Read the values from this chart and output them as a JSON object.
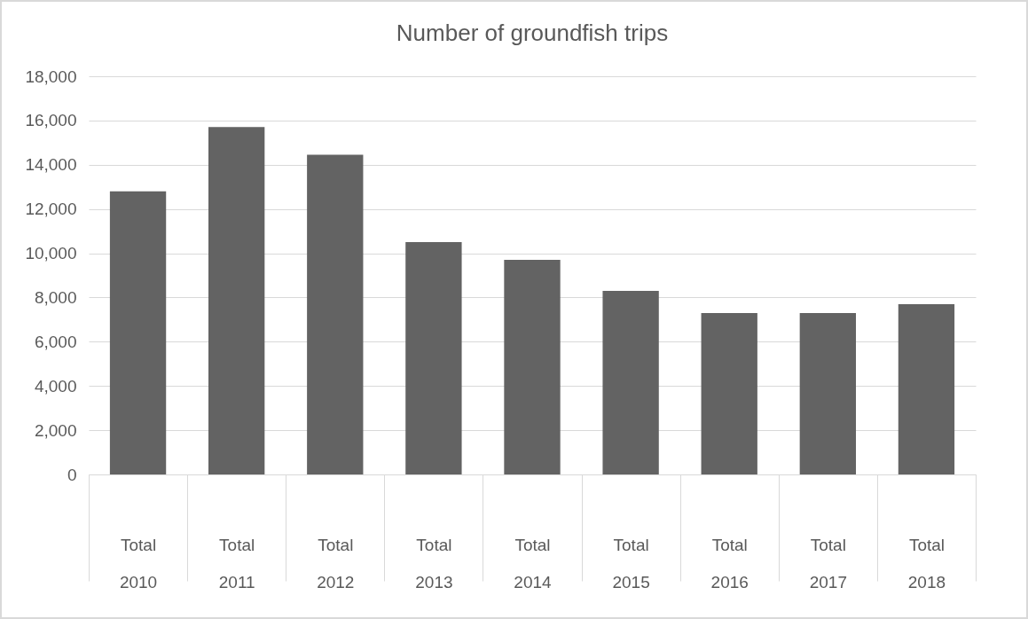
{
  "chart_data": {
    "type": "bar",
    "title": "Number of groundfish trips",
    "categories": [
      "Total 2010",
      "Total 2011",
      "Total 2012",
      "Total 2013",
      "Total 2014",
      "Total 2015",
      "Total 2016",
      "Total 2017",
      "Total 2018"
    ],
    "values": [
      12800,
      15700,
      14450,
      10500,
      9700,
      8300,
      7300,
      7300,
      7700
    ],
    "color": "#636363",
    "ylim": [
      0,
      18000
    ],
    "yticks": [
      0,
      {
        "value": 2000,
        "label": "2,000"
      },
      {
        "value": 4000,
        "label": "4,000"
      },
      {
        "value": 6000,
        "label": "6,000"
      },
      {
        "value": 8000,
        "label": "8,000"
      },
      {
        "value": 10000,
        "label": "10,000"
      },
      {
        "value": 12000,
        "label": "12,000"
      },
      {
        "value": 14000,
        "label": "14,000"
      },
      {
        "value": 16000,
        "label": "16,000"
      },
      {
        "value": 18000,
        "label": "18,000"
      }
    ],
    "grid": "y"
  }
}
